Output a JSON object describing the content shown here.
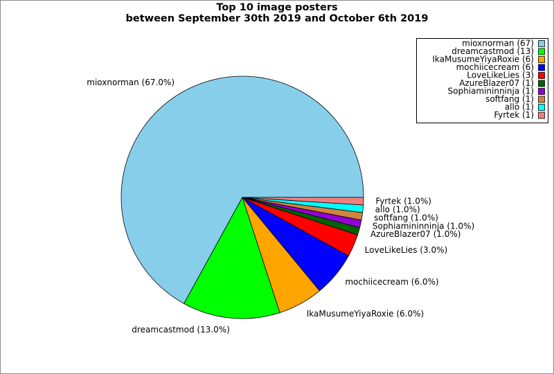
{
  "chart_data": {
    "type": "pie",
    "title": "Top 10 image posters",
    "subtitle": "between September 30th 2019 and October 6th 2019",
    "categories": [
      "mioxnorman",
      "dreamcastmod",
      "IkaMusumeYiyaRoxie",
      "mochiicecream",
      "LoveLikeLies",
      "AzureBlazer07",
      "Sophiamininninja",
      "softfang",
      "allo",
      "Fyrtek"
    ],
    "values": [
      67,
      13,
      6,
      6,
      3,
      1,
      1,
      1,
      1,
      1
    ],
    "value_labels": [
      "mioxnorman (67.0%)",
      "dreamcastmod (13.0%)",
      "IkaMusumeYiyaRoxie (6.0%)",
      "mochiicecream (6.0%)",
      "LoveLikeLies (3.0%)",
      "AzureBlazer07 (1.0%)",
      "Sophiamininninja (1.0%)",
      "softfang (1.0%)",
      "allo (1.0%)",
      "Fyrtek (1.0%)"
    ],
    "legend_labels": [
      "mioxnorman (67)",
      "dreamcastmod (13)",
      "IkaMusumeYiyaRoxie (6)",
      "mochiicecream (6)",
      "LoveLikeLies (3)",
      "AzureBlazer07 (1)",
      "Sophiamininninja (1)",
      "softfang (1)",
      "allo (1)",
      "Fyrtek (1)"
    ],
    "colors": [
      "#87ceeb",
      "#00ff00",
      "#ffa500",
      "#0000ff",
      "#ff0000",
      "#006400",
      "#9400d3",
      "#cd853f",
      "#00ffff",
      "#f08080"
    ],
    "legend": "upper right"
  }
}
